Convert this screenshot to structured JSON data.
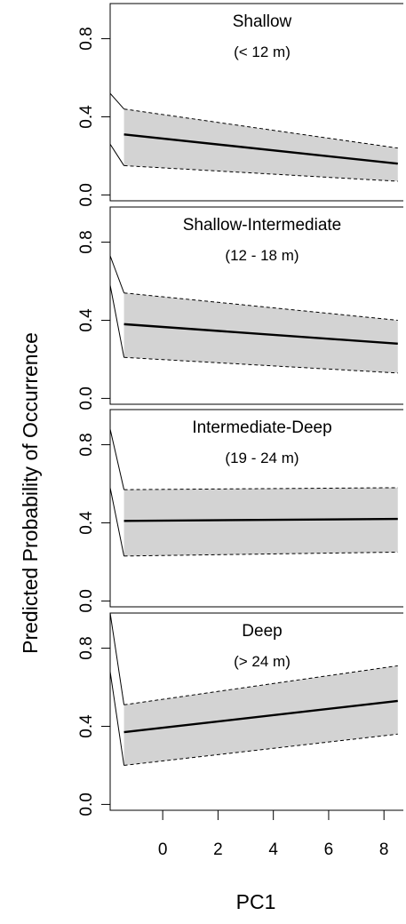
{
  "chart_data": {
    "type": "line",
    "xlabel": "PC1",
    "ylabel": "Predicted Probability of Occurrence",
    "xlim": [
      -1.9,
      8.7
    ],
    "ylim": [
      -0.03,
      0.98
    ],
    "x_ticks": [
      "0",
      "2",
      "4",
      "6",
      "8"
    ],
    "y_ticks": [
      "0.0",
      "0.4",
      "0.8"
    ],
    "grid": false,
    "panels": [
      {
        "title": "Shallow",
        "subtitle": "(< 12 m)",
        "x": [
          -1.4,
          8.5
        ],
        "fit": [
          0.31,
          0.16
        ],
        "lower": [
          0.15,
          0.07
        ],
        "upper": [
          0.44,
          0.24
        ],
        "leader_start": [
          0.52,
          0.26
        ]
      },
      {
        "title": "Shallow-Intermediate",
        "subtitle": "(12 - 18 m)",
        "x": [
          -1.4,
          8.5
        ],
        "fit": [
          0.38,
          0.28
        ],
        "lower": [
          0.21,
          0.13
        ],
        "upper": [
          0.54,
          0.4
        ],
        "leader_start": [
          0.73,
          0.58
        ]
      },
      {
        "title": "Intermediate-Deep",
        "subtitle": "(19 - 24 m)",
        "x": [
          -1.4,
          8.5
        ],
        "fit": [
          0.41,
          0.42
        ],
        "lower": [
          0.23,
          0.25
        ],
        "upper": [
          0.57,
          0.58
        ],
        "leader_start": [
          0.88,
          0.58
        ]
      },
      {
        "title": "Deep",
        "subtitle": "(> 24 m)",
        "x": [
          -1.4,
          8.5
        ],
        "fit": [
          0.37,
          0.53
        ],
        "lower": [
          0.2,
          0.36
        ],
        "upper": [
          0.51,
          0.71
        ],
        "leader_start": [
          0.98,
          0.68
        ]
      }
    ]
  }
}
